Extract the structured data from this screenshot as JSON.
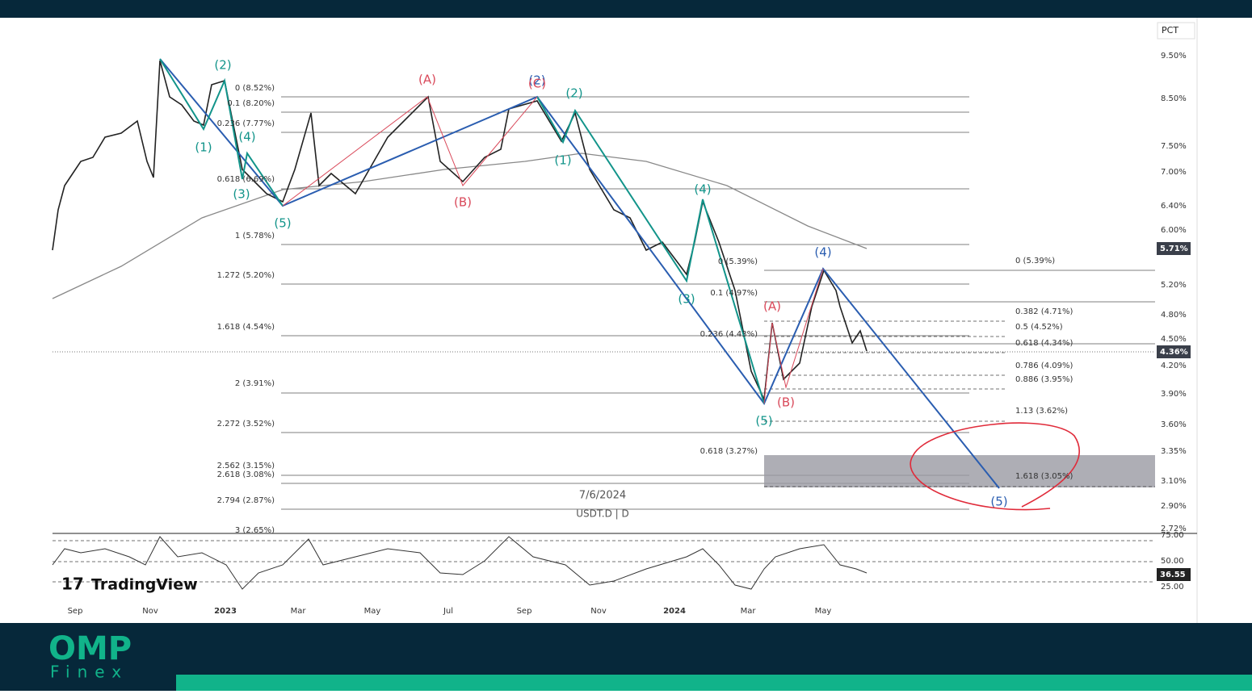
{
  "header": {
    "axis_unit": "PCT"
  },
  "price_axis": [
    "9.50%",
    "8.50%",
    "7.50%",
    "7.00%",
    "6.40%",
    "6.00%",
    "5.20%",
    "4.80%",
    "4.50%",
    "4.20%",
    "3.90%",
    "3.60%",
    "3.35%",
    "3.10%",
    "2.90%",
    "2.72%"
  ],
  "price_badges": [
    "5.71%",
    "4.36%"
  ],
  "rsi_axis": [
    "75.00",
    "50.00",
    "25.00"
  ],
  "rsi_badge": "36.55",
  "time_axis": [
    "Sep",
    "Nov",
    "2023",
    "Mar",
    "May",
    "Jul",
    "Sep",
    "Nov",
    "2024",
    "Mar",
    "May"
  ],
  "fib_left": [
    "0 (8.52%)",
    "0.1 (8.20%)",
    "0.236 (7.77%)",
    "0.618 (6.69%)",
    "1 (5.78%)",
    "1.272 (5.20%)",
    "1.618 (4.54%)",
    "2 (3.91%)",
    "2.272 (3.52%)",
    "2.562 (3.15%)",
    "2.618 (3.08%)",
    "2.794 (2.87%)",
    "3 (2.65%)"
  ],
  "fib_middle": [
    "0 (5.39%)",
    "0.1 (4.97%)",
    "0.236 (4.43%)",
    "0.618 (3.27%)"
  ],
  "fib_right": [
    "0 (5.39%)",
    "0.382 (4.71%)",
    "0.5 (4.52%)",
    "0.618 (4.34%)",
    "0.786 (4.09%)",
    "0.886 (3.95%)",
    "1.13 (3.62%)",
    "1.618 (3.05%)"
  ],
  "wave_labels": [
    "(2)",
    "(1)",
    "(4)",
    "(3)",
    "(5)",
    "(2)",
    "(1)",
    "(4)",
    "(3)",
    "(5)",
    "(2)",
    "(4)",
    "(5)",
    "(A)",
    "(B)",
    "(C)",
    "(A)",
    "(B)"
  ],
  "watermark": {
    "date": "7/6/2024",
    "symbol": "USDT.D | D"
  },
  "brand": "TradingView",
  "footer": {
    "logo": "OMP",
    "sub": "Finex"
  }
}
